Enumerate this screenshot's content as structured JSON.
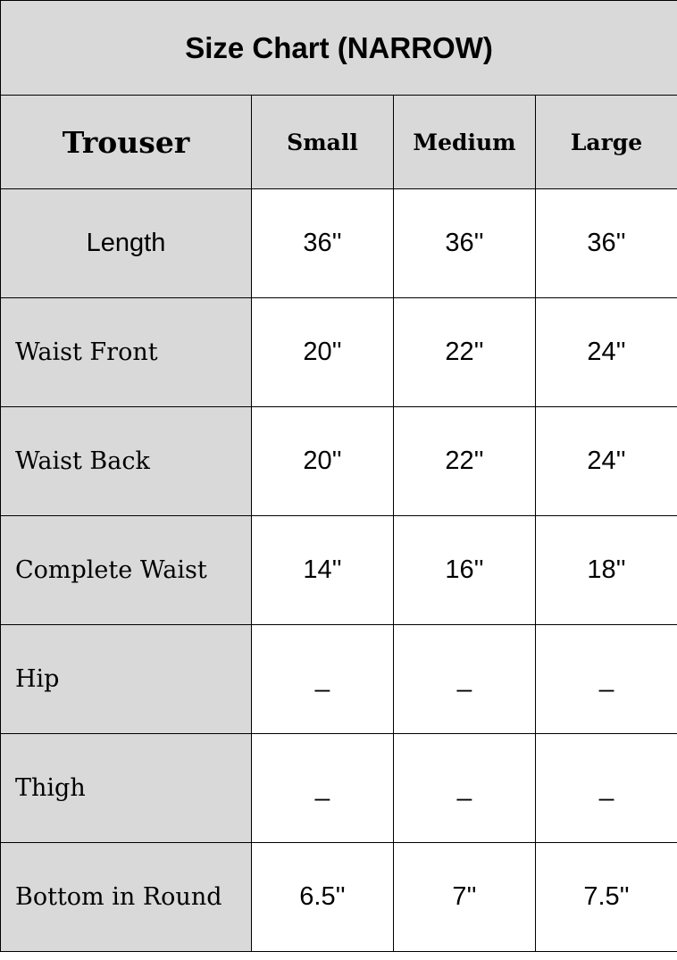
{
  "title": "Size Chart (NARROW)",
  "header": {
    "category": "Trouser",
    "sizes": [
      "Small",
      "Medium",
      "Large"
    ]
  },
  "rows": [
    {
      "label": "Length",
      "values": [
        "36''",
        "36''",
        "36''"
      ]
    },
    {
      "label": "Waist Front",
      "values": [
        "20''",
        "22''",
        "24''"
      ]
    },
    {
      "label": "Waist Back",
      "values": [
        "20''",
        "22''",
        "24''"
      ]
    },
    {
      "label": "Complete Waist",
      "values": [
        "14''",
        "16''",
        "18''"
      ]
    },
    {
      "label": "Hip",
      "values": [
        "_",
        "_",
        "_"
      ]
    },
    {
      "label": "Thigh",
      "values": [
        "_",
        "_",
        "_"
      ]
    },
    {
      "label": "Bottom in Round",
      "values": [
        "6.5''",
        "7''",
        "7.5''"
      ]
    }
  ],
  "colors": {
    "header_bg": "#d9d9d9",
    "border": "#000000"
  }
}
